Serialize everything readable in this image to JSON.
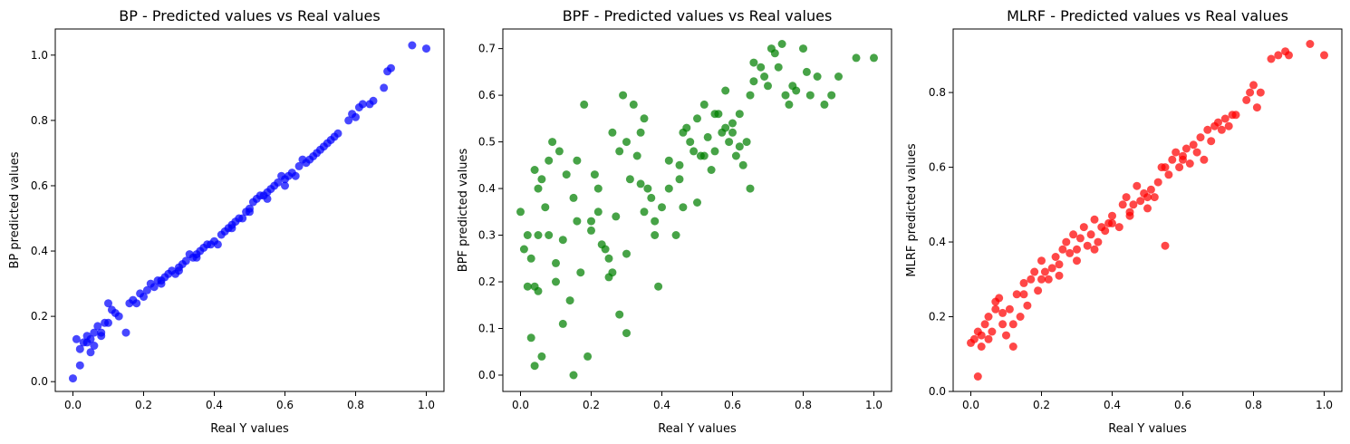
{
  "chart_data": [
    {
      "type": "scatter",
      "title": "BP - Predicted values vs Real values",
      "xlabel": "Real Y values",
      "ylabel": "BP predicted values",
      "xlim": [
        -0.05,
        1.05
      ],
      "ylim": [
        -0.03,
        1.08
      ],
      "xticks": [
        0.0,
        0.2,
        0.4,
        0.6,
        0.8,
        1.0
      ],
      "yticks": [
        0.0,
        0.2,
        0.4,
        0.6,
        0.8,
        1.0
      ],
      "color": "#0000ff",
      "grid": false,
      "series": [
        {
          "x": [
            0.0,
            0.01,
            0.02,
            0.03,
            0.04,
            0.05,
            0.05,
            0.06,
            0.07,
            0.08,
            0.09,
            0.1,
            0.11,
            0.12,
            0.13,
            0.15,
            0.16,
            0.17,
            0.18,
            0.19,
            0.2,
            0.21,
            0.22,
            0.23,
            0.24,
            0.25,
            0.26,
            0.27,
            0.28,
            0.29,
            0.3,
            0.31,
            0.32,
            0.33,
            0.34,
            0.35,
            0.36,
            0.37,
            0.38,
            0.39,
            0.4,
            0.41,
            0.42,
            0.43,
            0.44,
            0.45,
            0.46,
            0.47,
            0.48,
            0.49,
            0.5,
            0.51,
            0.52,
            0.53,
            0.54,
            0.55,
            0.56,
            0.57,
            0.58,
            0.59,
            0.6,
            0.61,
            0.62,
            0.63,
            0.64,
            0.65,
            0.66,
            0.67,
            0.68,
            0.69,
            0.7,
            0.71,
            0.72,
            0.73,
            0.74,
            0.75,
            0.78,
            0.79,
            0.8,
            0.81,
            0.82,
            0.84,
            0.85,
            0.88,
            0.89,
            0.9,
            0.96,
            1.0,
            0.02,
            0.04,
            0.06,
            0.08,
            0.1,
            0.25,
            0.3,
            0.35,
            0.45,
            0.5,
            0.55,
            0.6
          ],
          "y": [
            0.01,
            0.13,
            0.05,
            0.12,
            0.14,
            0.09,
            0.13,
            0.15,
            0.17,
            0.15,
            0.18,
            0.24,
            0.22,
            0.21,
            0.2,
            0.15,
            0.24,
            0.25,
            0.24,
            0.27,
            0.26,
            0.28,
            0.3,
            0.29,
            0.31,
            0.31,
            0.32,
            0.33,
            0.34,
            0.33,
            0.35,
            0.36,
            0.37,
            0.39,
            0.38,
            0.39,
            0.4,
            0.41,
            0.42,
            0.42,
            0.43,
            0.42,
            0.45,
            0.46,
            0.47,
            0.48,
            0.49,
            0.5,
            0.5,
            0.52,
            0.53,
            0.55,
            0.56,
            0.57,
            0.57,
            0.58,
            0.59,
            0.6,
            0.61,
            0.63,
            0.62,
            0.63,
            0.64,
            0.63,
            0.66,
            0.68,
            0.67,
            0.68,
            0.69,
            0.7,
            0.71,
            0.72,
            0.73,
            0.74,
            0.75,
            0.76,
            0.8,
            0.82,
            0.81,
            0.84,
            0.85,
            0.85,
            0.86,
            0.9,
            0.95,
            0.96,
            1.03,
            1.02,
            0.1,
            0.12,
            0.11,
            0.14,
            0.18,
            0.3,
            0.34,
            0.38,
            0.47,
            0.52,
            0.56,
            0.6
          ]
        }
      ]
    },
    {
      "type": "scatter",
      "title": "BPF - Predicted values vs Real values",
      "xlabel": "Real Y values",
      "ylabel": "BPF predicted values",
      "xlim": [
        -0.05,
        1.05
      ],
      "ylim": [
        -0.035,
        0.742
      ],
      "xticks": [
        0.0,
        0.2,
        0.4,
        0.6,
        0.8,
        1.0
      ],
      "yticks": [
        0.0,
        0.1,
        0.2,
        0.3,
        0.4,
        0.5,
        0.6,
        0.7
      ],
      "color": "#008000",
      "grid": false,
      "series": [
        {
          "x": [
            0.0,
            0.01,
            0.02,
            0.02,
            0.03,
            0.04,
            0.04,
            0.05,
            0.05,
            0.06,
            0.06,
            0.07,
            0.08,
            0.09,
            0.1,
            0.11,
            0.12,
            0.13,
            0.14,
            0.15,
            0.15,
            0.16,
            0.17,
            0.18,
            0.19,
            0.2,
            0.21,
            0.22,
            0.23,
            0.24,
            0.25,
            0.26,
            0.27,
            0.28,
            0.28,
            0.29,
            0.3,
            0.3,
            0.31,
            0.32,
            0.33,
            0.34,
            0.35,
            0.36,
            0.37,
            0.38,
            0.39,
            0.4,
            0.42,
            0.44,
            0.45,
            0.46,
            0.47,
            0.48,
            0.49,
            0.5,
            0.51,
            0.52,
            0.53,
            0.54,
            0.55,
            0.56,
            0.57,
            0.58,
            0.59,
            0.6,
            0.61,
            0.62,
            0.63,
            0.64,
            0.65,
            0.66,
            0.68,
            0.69,
            0.7,
            0.71,
            0.72,
            0.73,
            0.74,
            0.75,
            0.76,
            0.77,
            0.78,
            0.8,
            0.81,
            0.82,
            0.84,
            0.86,
            0.88,
            0.9,
            0.95,
            1.0,
            0.03,
            0.05,
            0.1,
            0.2,
            0.25,
            0.3,
            0.35,
            0.45,
            0.5,
            0.55,
            0.6,
            0.65,
            0.04,
            0.08,
            0.12,
            0.16,
            0.22,
            0.26,
            0.34,
            0.38,
            0.42,
            0.46,
            0.52,
            0.58,
            0.62,
            0.66
          ],
          "y": [
            0.35,
            0.27,
            0.19,
            0.3,
            0.08,
            0.44,
            0.02,
            0.3,
            0.18,
            0.04,
            0.42,
            0.36,
            0.3,
            0.5,
            0.2,
            0.48,
            0.11,
            0.43,
            0.16,
            0.0,
            0.38,
            0.46,
            0.22,
            0.58,
            0.04,
            0.33,
            0.43,
            0.4,
            0.28,
            0.27,
            0.25,
            0.52,
            0.34,
            0.13,
            0.48,
            0.6,
            0.5,
            0.09,
            0.42,
            0.58,
            0.47,
            0.52,
            0.35,
            0.4,
            0.38,
            0.3,
            0.19,
            0.36,
            0.4,
            0.3,
            0.45,
            0.36,
            0.53,
            0.5,
            0.48,
            0.55,
            0.47,
            0.58,
            0.51,
            0.44,
            0.48,
            0.56,
            0.52,
            0.61,
            0.5,
            0.54,
            0.47,
            0.56,
            0.45,
            0.5,
            0.4,
            0.63,
            0.66,
            0.64,
            0.62,
            0.7,
            0.69,
            0.66,
            0.71,
            0.6,
            0.58,
            0.62,
            0.61,
            0.7,
            0.65,
            0.6,
            0.64,
            0.58,
            0.6,
            0.64,
            0.68,
            0.68,
            0.25,
            0.4,
            0.24,
            0.31,
            0.21,
            0.26,
            0.55,
            0.42,
            0.37,
            0.56,
            0.52,
            0.6,
            0.19,
            0.46,
            0.29,
            0.33,
            0.35,
            0.22,
            0.41,
            0.33,
            0.46,
            0.52,
            0.47,
            0.53,
            0.49,
            0.67
          ]
        }
      ]
    },
    {
      "type": "scatter",
      "title": "MLRF - Predicted values vs Real values",
      "xlabel": "Real Y values",
      "ylabel": "MLRF predicted values",
      "xlim": [
        -0.05,
        1.05
      ],
      "ylim": [
        0.0,
        0.97
      ],
      "xticks": [
        0.0,
        0.2,
        0.4,
        0.6,
        0.8,
        1.0
      ],
      "yticks": [
        0.0,
        0.2,
        0.4,
        0.6,
        0.8
      ],
      "color": "#ff0000",
      "grid": false,
      "series": [
        {
          "x": [
            0.0,
            0.01,
            0.02,
            0.03,
            0.03,
            0.04,
            0.05,
            0.06,
            0.07,
            0.08,
            0.09,
            0.1,
            0.11,
            0.12,
            0.13,
            0.14,
            0.15,
            0.16,
            0.17,
            0.18,
            0.19,
            0.2,
            0.21,
            0.22,
            0.23,
            0.24,
            0.25,
            0.26,
            0.27,
            0.28,
            0.29,
            0.3,
            0.31,
            0.32,
            0.33,
            0.34,
            0.35,
            0.36,
            0.37,
            0.38,
            0.39,
            0.4,
            0.42,
            0.43,
            0.44,
            0.45,
            0.46,
            0.47,
            0.48,
            0.49,
            0.5,
            0.51,
            0.52,
            0.53,
            0.54,
            0.55,
            0.56,
            0.57,
            0.58,
            0.59,
            0.6,
            0.61,
            0.62,
            0.63,
            0.64,
            0.65,
            0.66,
            0.67,
            0.68,
            0.69,
            0.7,
            0.71,
            0.72,
            0.73,
            0.74,
            0.75,
            0.78,
            0.79,
            0.8,
            0.81,
            0.82,
            0.85,
            0.87,
            0.89,
            0.9,
            0.96,
            1.0,
            0.02,
            0.05,
            0.07,
            0.09,
            0.12,
            0.15,
            0.2,
            0.25,
            0.3,
            0.35,
            0.4,
            0.45,
            0.5,
            0.55,
            0.6
          ],
          "y": [
            0.13,
            0.14,
            0.04,
            0.15,
            0.12,
            0.18,
            0.2,
            0.16,
            0.22,
            0.25,
            0.18,
            0.15,
            0.22,
            0.12,
            0.26,
            0.2,
            0.29,
            0.23,
            0.3,
            0.32,
            0.27,
            0.35,
            0.32,
            0.3,
            0.33,
            0.36,
            0.34,
            0.38,
            0.4,
            0.37,
            0.42,
            0.38,
            0.41,
            0.44,
            0.39,
            0.42,
            0.46,
            0.4,
            0.44,
            0.43,
            0.45,
            0.47,
            0.44,
            0.5,
            0.52,
            0.48,
            0.5,
            0.55,
            0.51,
            0.53,
            0.49,
            0.54,
            0.52,
            0.56,
            0.6,
            0.39,
            0.58,
            0.62,
            0.64,
            0.6,
            0.63,
            0.65,
            0.61,
            0.66,
            0.64,
            0.68,
            0.62,
            0.7,
            0.67,
            0.71,
            0.72,
            0.7,
            0.73,
            0.71,
            0.74,
            0.74,
            0.78,
            0.8,
            0.82,
            0.76,
            0.8,
            0.89,
            0.9,
            0.91,
            0.9,
            0.93,
            0.9,
            0.16,
            0.14,
            0.24,
            0.21,
            0.18,
            0.26,
            0.3,
            0.31,
            0.35,
            0.38,
            0.45,
            0.47,
            0.52,
            0.6,
            0.62
          ]
        }
      ]
    }
  ]
}
